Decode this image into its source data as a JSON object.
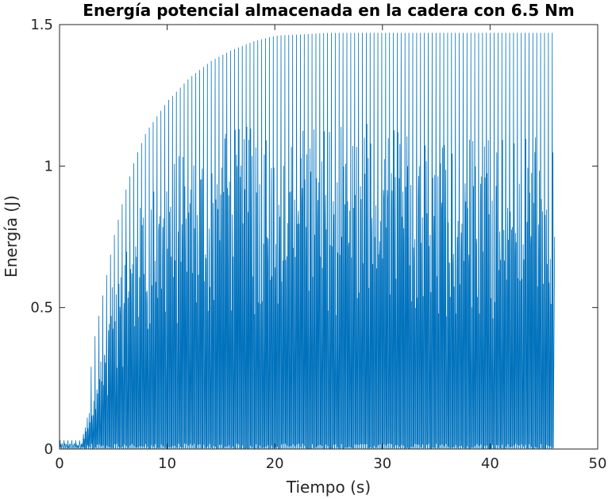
{
  "chart_data": {
    "type": "line",
    "title": "Energía potencial almacenada en la cadera con 6.5 Nm",
    "xlabel": "Tiempo (s)",
    "ylabel": "Energía (J)",
    "xlim": [
      0,
      50
    ],
    "ylim": [
      0,
      1.5
    ],
    "xticks": [
      0,
      10,
      20,
      30,
      40,
      50
    ],
    "yticks": [
      0,
      0.5,
      1,
      1.5
    ],
    "xtick_labels": [
      "0",
      "10",
      "20",
      "30",
      "40",
      "50"
    ],
    "ytick_labels": [
      "0",
      "0.5",
      "1",
      "1.5"
    ],
    "grid": false,
    "line_color": "#0072BD",
    "series": [
      {
        "x_range": [
          0,
          46
        ],
        "description_values": {
          "upper_peak_envelope": {
            "x": [
              0,
              2,
              2.5,
              3,
              4,
              5,
              6,
              7,
              8,
              10,
              12,
              14,
              16,
              18,
              20,
              25,
              30,
              35,
              40,
              46
            ],
            "y": [
              0.03,
              0.03,
              0.1,
              0.35,
              0.55,
              0.75,
              0.9,
              1.03,
              1.12,
              1.23,
              1.31,
              1.37,
              1.41,
              1.44,
              1.46,
              1.47,
              1.47,
              1.47,
              1.47,
              1.47
            ]
          },
          "secondary_peak_envelope": {
            "x": [
              0,
              2,
              3,
              4,
              5,
              6,
              8,
              10,
              12,
              14,
              16,
              20,
              46
            ],
            "y": [
              0.02,
              0.02,
              0.2,
              0.4,
              0.6,
              0.75,
              0.92,
              1.02,
              1.08,
              1.12,
              1.14,
              1.15,
              1.15
            ]
          },
          "oscillation_period": 0.18,
          "minimum_value": 0.0
        }
      }
    ]
  }
}
